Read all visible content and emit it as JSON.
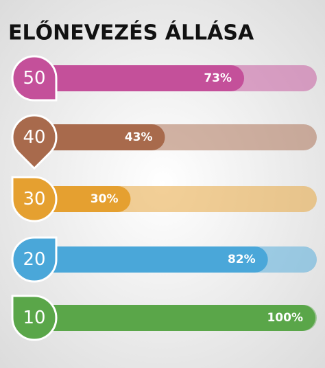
{
  "chart_data": {
    "type": "bar",
    "orientation": "horizontal",
    "title": "ELŐNEVEZÉS ÁLLÁSA",
    "categories": [
      "50",
      "40",
      "30",
      "20",
      "10"
    ],
    "values": [
      73,
      43,
      30,
      82,
      100
    ],
    "value_labels": [
      "73%",
      "43%",
      "30%",
      "82%",
      "100%"
    ],
    "colors": [
      "#c4509a",
      "#a86a4c",
      "#e5a030",
      "#4aa7d9",
      "#5aa649"
    ],
    "xlim": [
      0,
      100
    ]
  }
}
